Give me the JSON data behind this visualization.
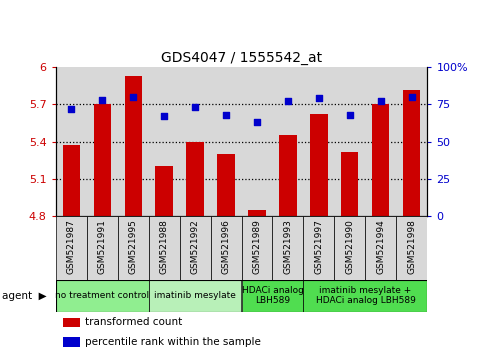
{
  "title": "GDS4047 / 1555542_at",
  "samples": [
    "GSM521987",
    "GSM521991",
    "GSM521995",
    "GSM521988",
    "GSM521992",
    "GSM521996",
    "GSM521989",
    "GSM521993",
    "GSM521997",
    "GSM521990",
    "GSM521994",
    "GSM521998"
  ],
  "bar_values": [
    5.37,
    5.7,
    5.93,
    5.2,
    5.4,
    5.3,
    4.85,
    5.45,
    5.62,
    5.32,
    5.7,
    5.82
  ],
  "percentile_values": [
    72,
    78,
    80,
    67,
    73,
    68,
    63,
    77,
    79,
    68,
    77,
    80
  ],
  "bar_color": "#cc0000",
  "percentile_color": "#0000cc",
  "ylim_left": [
    4.8,
    6.0
  ],
  "ylim_right": [
    0,
    100
  ],
  "yticks_left": [
    4.8,
    5.1,
    5.4,
    5.7,
    6.0
  ],
  "yticks_right": [
    0,
    25,
    50,
    75,
    100
  ],
  "ytick_labels_left": [
    "4.8",
    "5.1",
    "5.4",
    "5.7",
    "6"
  ],
  "ytick_labels_right": [
    "0",
    "25",
    "50",
    "75",
    "100%"
  ],
  "hlines": [
    5.1,
    5.4,
    5.7
  ],
  "agent_groups": [
    {
      "label": "no treatment control",
      "start": 0,
      "end": 3,
      "color": "#90ee90"
    },
    {
      "label": "imatinib mesylate",
      "start": 3,
      "end": 6,
      "color": "#b8f0b8"
    },
    {
      "label": "HDACi analog\nLBH589",
      "start": 6,
      "end": 8,
      "color": "#50dd50"
    },
    {
      "label": "imatinib mesylate +\nHDACi analog LBH589",
      "start": 8,
      "end": 12,
      "color": "#50dd50"
    }
  ],
  "legend_items": [
    {
      "label": "transformed count",
      "color": "#cc0000"
    },
    {
      "label": "percentile rank within the sample",
      "color": "#0000cc"
    }
  ],
  "bar_width": 0.55,
  "col_bg": "#d8d8d8"
}
